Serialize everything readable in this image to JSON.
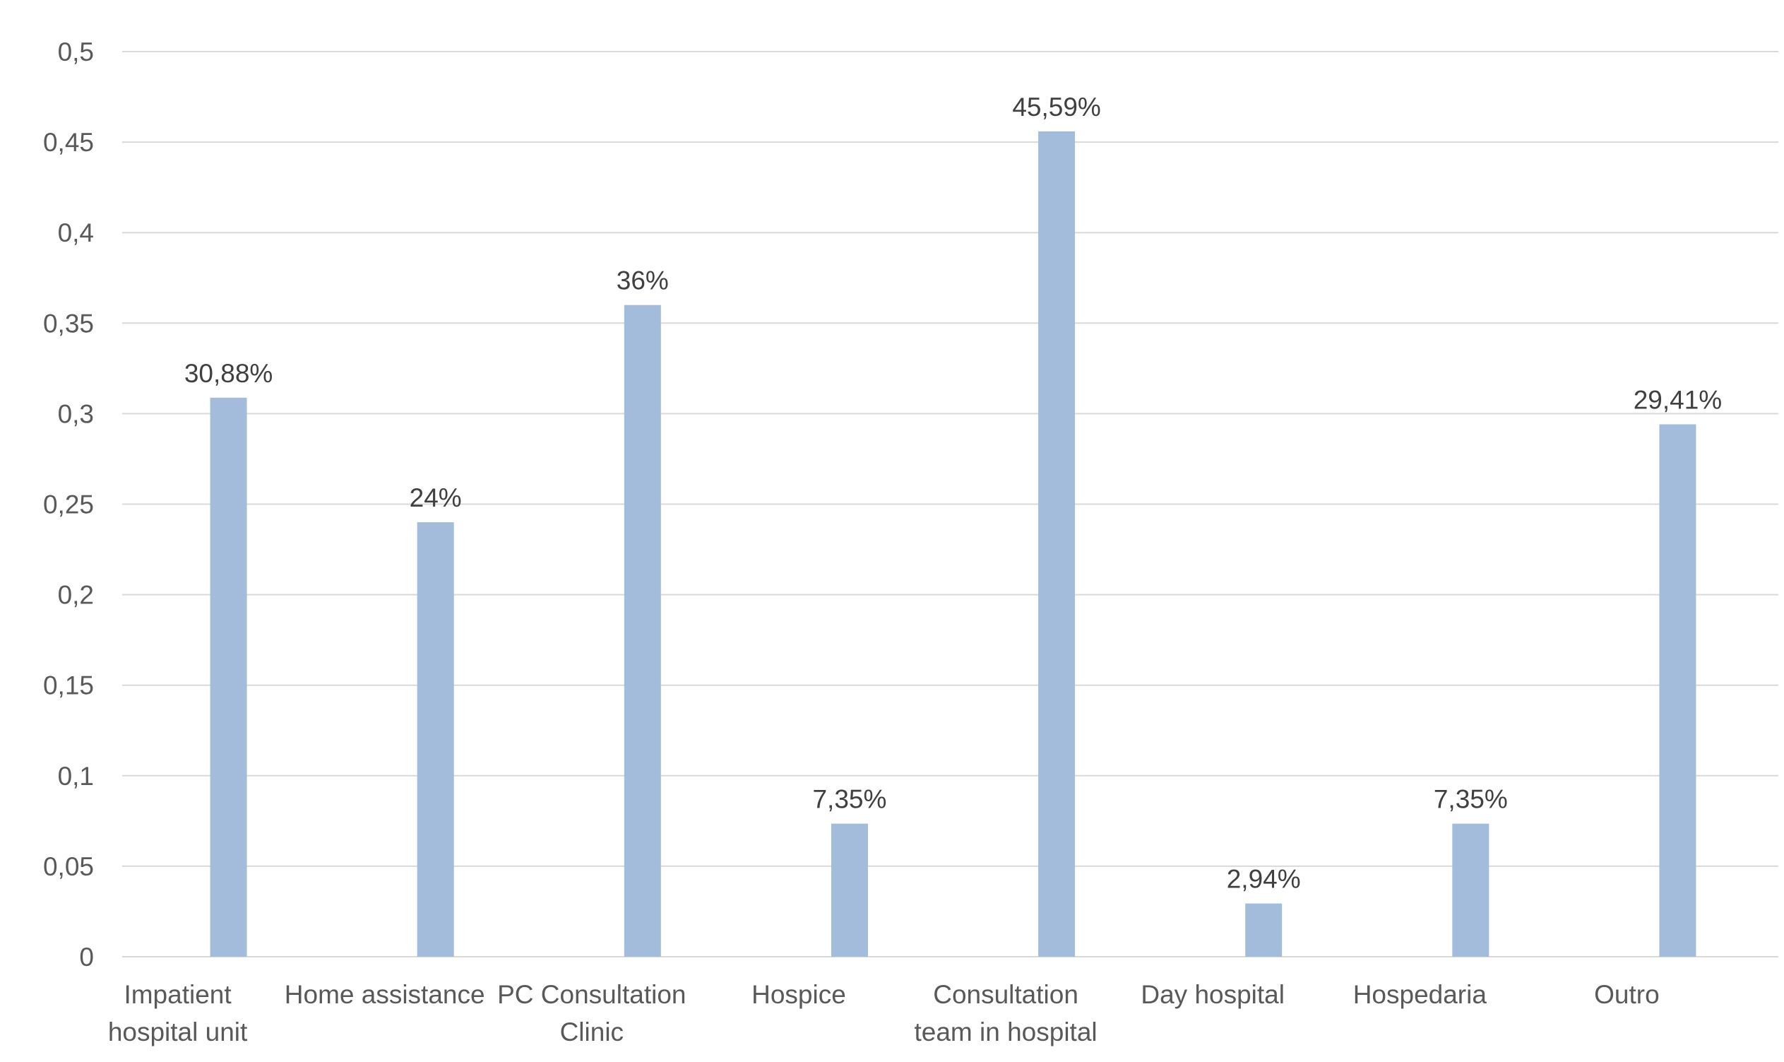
{
  "chart_data": {
    "type": "bar",
    "categories": [
      [
        "Impatient",
        "hospital unit"
      ],
      [
        "Home assistance"
      ],
      [
        "PC Consultation",
        "Clinic"
      ],
      [
        "Hospice"
      ],
      [
        "Consultation",
        "team in hospital"
      ],
      [
        "Day hospital"
      ],
      [
        "Hospedaria"
      ],
      [
        "Outro"
      ]
    ],
    "values": [
      0.3088,
      0.24,
      0.36,
      0.0735,
      0.4559,
      0.0294,
      0.0735,
      0.2941
    ],
    "data_labels": [
      "30,88%",
      "24%",
      "36%",
      "7,35%",
      "45,59%",
      "2,94%",
      "7,35%",
      "29,41%"
    ],
    "y_ticks": [
      0,
      0.05,
      0.1,
      0.15,
      0.2,
      0.25,
      0.3,
      0.35,
      0.4,
      0.45,
      0.5
    ],
    "y_tick_labels": [
      "0",
      "0,05",
      "0,1",
      "0,15",
      "0,2",
      "0,25",
      "0,3",
      "0,35",
      "0,4",
      "0,45",
      "0,5"
    ],
    "ylim": [
      0,
      0.5
    ],
    "grid": true,
    "legend": "none",
    "colors": {
      "bar": "#a4bcdc",
      "grid": "#d9d9d9",
      "axis": "#d9d9d9"
    }
  }
}
